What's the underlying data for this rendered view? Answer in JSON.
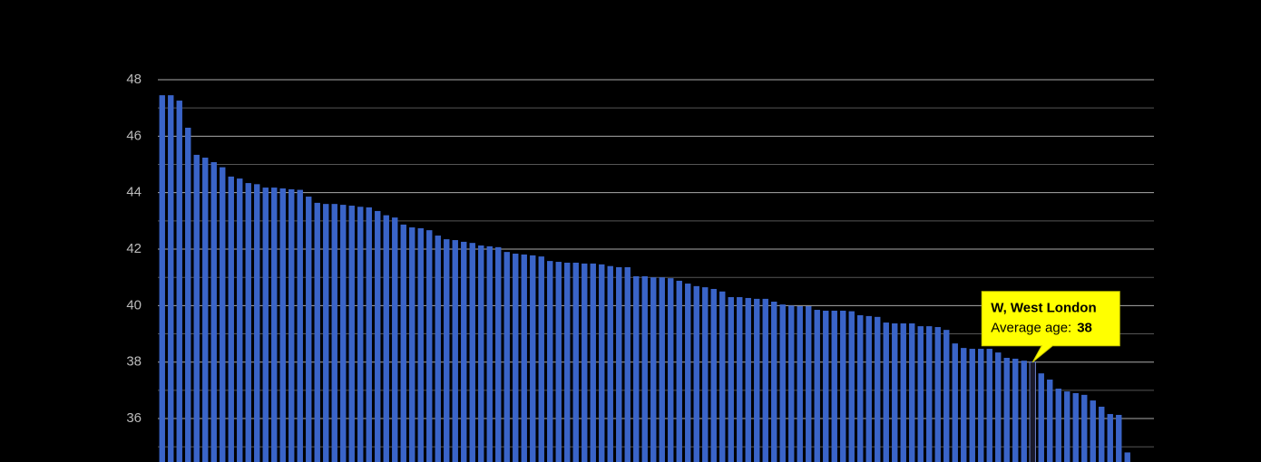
{
  "chart_data": {
    "type": "bar",
    "categories": [
      null,
      null,
      null,
      null,
      null,
      null,
      null,
      null,
      null,
      null,
      null,
      null,
      null,
      null,
      null,
      null,
      null,
      null,
      null,
      null,
      null,
      null,
      null,
      null,
      null,
      null,
      null,
      null,
      null,
      null,
      null,
      null,
      null,
      null,
      null,
      null,
      null,
      null,
      null,
      null,
      null,
      null,
      null,
      null,
      null,
      null,
      null,
      null,
      null,
      null,
      null,
      null,
      null,
      null,
      null,
      null,
      null,
      null,
      null,
      null,
      null,
      null,
      null,
      null,
      null,
      null,
      null,
      null,
      null,
      null,
      null,
      null,
      null,
      null,
      null,
      null,
      null,
      null,
      null,
      null,
      null,
      null,
      null,
      null,
      null,
      null,
      null,
      null,
      null,
      null,
      null,
      null,
      null,
      null,
      null,
      null,
      null,
      null,
      null,
      null,
      null,
      "W, West London",
      null,
      null,
      null,
      null,
      null,
      null,
      null,
      null,
      null,
      null,
      null
    ],
    "values": [
      47.45,
      47.45,
      47.26,
      46.3,
      45.34,
      45.24,
      45.08,
      44.9,
      44.57,
      44.5,
      44.34,
      44.3,
      44.18,
      44.18,
      44.15,
      44.12,
      44.1,
      43.86,
      43.64,
      43.6,
      43.6,
      43.57,
      43.54,
      43.5,
      43.48,
      43.35,
      43.2,
      43.12,
      42.87,
      42.77,
      42.74,
      42.67,
      42.48,
      42.35,
      42.32,
      42.26,
      42.22,
      42.13,
      42.1,
      42.07,
      41.9,
      41.84,
      41.81,
      41.78,
      41.74,
      41.58,
      41.55,
      41.52,
      41.52,
      41.49,
      41.49,
      41.46,
      41.4,
      41.36,
      41.36,
      41.04,
      41.04,
      41.0,
      41.0,
      40.97,
      40.88,
      40.78,
      40.69,
      40.65,
      40.59,
      40.5,
      40.3,
      40.3,
      40.27,
      40.24,
      40.24,
      40.14,
      40.04,
      40.0,
      39.98,
      39.98,
      39.85,
      39.82,
      39.82,
      39.82,
      39.8,
      39.66,
      39.63,
      39.6,
      39.4,
      39.37,
      39.37,
      39.37,
      39.27,
      39.27,
      39.24,
      39.14,
      38.66,
      38.5,
      38.47,
      38.47,
      38.47,
      38.34,
      38.15,
      38.12,
      38.05,
      38,
      37.6,
      37.38,
      37.06,
      36.96,
      36.9,
      36.84,
      36.64,
      36.42,
      36.16,
      36.13,
      34.8
    ],
    "color": "#3a64c8",
    "highlight": 101,
    "tooltip_label": "Average age:",
    "ylim": [
      34.5,
      48
    ],
    "yticks": [
      36,
      38,
      40,
      42,
      44,
      46,
      48
    ],
    "minor_yticks": [
      35,
      37,
      39,
      41,
      43,
      45,
      47
    ],
    "grid": true
  }
}
